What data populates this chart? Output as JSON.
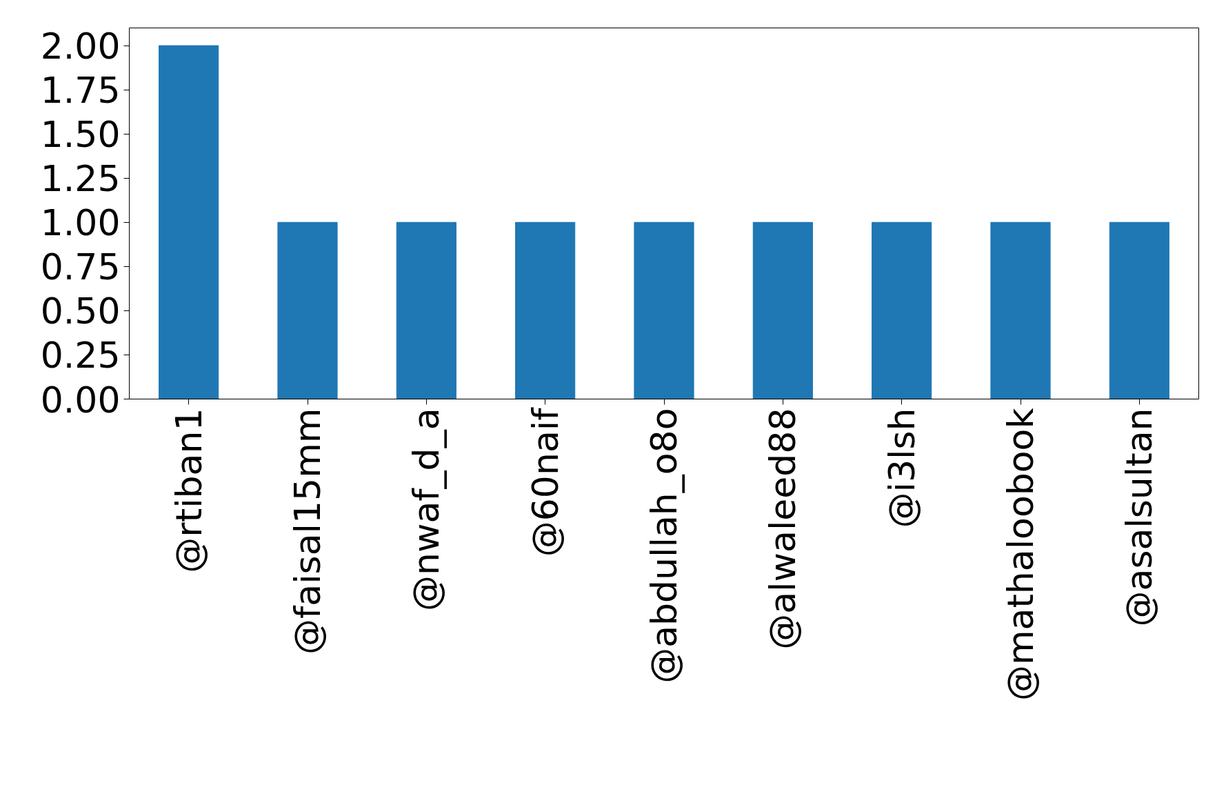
{
  "chart_data": {
    "type": "bar",
    "categories": [
      "@rtiban1",
      "@faisal15mm",
      "@nwaf_d_a",
      "@60naif",
      "@abdullah_o8o",
      "@alwaleed88",
      "@i3lsh",
      "@mathaloobook",
      "@asalsultan"
    ],
    "values": [
      2,
      1,
      1,
      1,
      1,
      1,
      1,
      1,
      1
    ],
    "color": "#1f77b4",
    "ylim": [
      0,
      2.1
    ],
    "yticks": [
      {
        "value": 0,
        "label": "0.00"
      },
      {
        "value": 0.25,
        "label": "0.25"
      },
      {
        "value": 0.5,
        "label": "0.50"
      },
      {
        "value": 0.75,
        "label": "0.75"
      },
      {
        "value": 1,
        "label": "1.00"
      },
      {
        "value": 1.25,
        "label": "1.25"
      },
      {
        "value": 1.5,
        "label": "1.50"
      },
      {
        "value": 1.75,
        "label": "1.75"
      },
      {
        "value": 2,
        "label": "2.00"
      }
    ],
    "grid": false
  }
}
